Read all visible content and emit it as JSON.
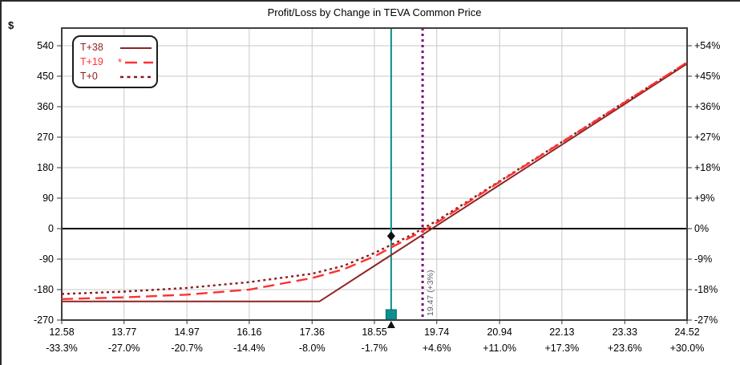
{
  "title": "Profit/Loss by Change in TEVA Common Price",
  "axis_unit_label": "$",
  "legend": {
    "items": [
      {
        "label": "T+38",
        "style": "solid",
        "color": "#8F2424"
      },
      {
        "label": "T+19",
        "style": "dashed-star",
        "color": "#FF3131"
      },
      {
        "label": "T+0",
        "style": "dotted",
        "color": "#8B1A1A"
      }
    ]
  },
  "annotation": {
    "label": "19.47 (+3%)",
    "price": 19.47,
    "color": "#7D0A7D"
  },
  "current_price_marker": {
    "price": 18.87,
    "color": "#0E8F8F",
    "pl_marker_value": -22
  },
  "chart_data": {
    "type": "line",
    "title": "Profit/Loss by Change in TEVA Common Price",
    "grid": true,
    "colors": {
      "grid": "#C9C9C9",
      "border": "#3F3F3F",
      "zero_line": "#000000",
      "tick": "#333333"
    },
    "x_axis": {
      "min": 12.58,
      "max": 24.52,
      "price_ticks": [
        12.58,
        13.77,
        14.97,
        16.16,
        17.36,
        18.55,
        19.74,
        20.94,
        22.13,
        23.33,
        24.52
      ],
      "percent_ticks": [
        "-33.3%",
        "-27.0%",
        "-20.7%",
        "-14.4%",
        "-8.0%",
        "-1.7%",
        "+4.6%",
        "+11.0%",
        "+17.3%",
        "+23.6%",
        "+30.0%"
      ]
    },
    "y_axis_left": {
      "label": "$",
      "min": -270,
      "max": 540,
      "ticks": [
        540,
        450,
        360,
        270,
        180,
        90,
        0,
        -90,
        -180,
        -270
      ]
    },
    "y_axis_right": {
      "ticks": [
        "+54%",
        "+45%",
        "+36%",
        "+27%",
        "+18%",
        "+9%",
        "0%",
        "-9%",
        "-18%",
        "-27%"
      ]
    },
    "series": [
      {
        "name": "T+38",
        "style": "solid",
        "color": "#8F2424",
        "points": [
          [
            12.58,
            -215
          ],
          [
            14.97,
            -215
          ],
          [
            16.16,
            -215
          ],
          [
            17.5,
            -215
          ],
          [
            18.55,
            -110
          ],
          [
            19.74,
            9
          ],
          [
            20.94,
            129
          ],
          [
            22.13,
            248
          ],
          [
            23.33,
            368
          ],
          [
            24.52,
            487
          ]
        ]
      },
      {
        "name": "T+0",
        "style": "dotted",
        "color": "#8B1A1A",
        "points": [
          [
            12.58,
            -193
          ],
          [
            13.77,
            -186
          ],
          [
            14.97,
            -175
          ],
          [
            16.16,
            -158
          ],
          [
            17.36,
            -133
          ],
          [
            17.96,
            -110
          ],
          [
            18.55,
            -72
          ],
          [
            19.15,
            -27
          ],
          [
            19.47,
            0
          ],
          [
            19.74,
            23
          ],
          [
            20.94,
            140
          ],
          [
            22.13,
            256
          ],
          [
            23.33,
            374
          ],
          [
            24.52,
            490
          ]
        ]
      },
      {
        "name": "T+19",
        "style": "dashed-star",
        "color": "#FF3131",
        "points": [
          [
            12.58,
            -208
          ],
          [
            13.77,
            -203
          ],
          [
            14.97,
            -195
          ],
          [
            16.16,
            -180
          ],
          [
            17.36,
            -146
          ],
          [
            17.96,
            -120
          ],
          [
            18.55,
            -82
          ],
          [
            19.15,
            -33
          ],
          [
            19.56,
            0
          ],
          [
            19.74,
            17
          ],
          [
            20.94,
            138
          ],
          [
            22.13,
            255
          ],
          [
            23.33,
            373
          ],
          [
            24.52,
            491
          ]
        ]
      }
    ]
  }
}
